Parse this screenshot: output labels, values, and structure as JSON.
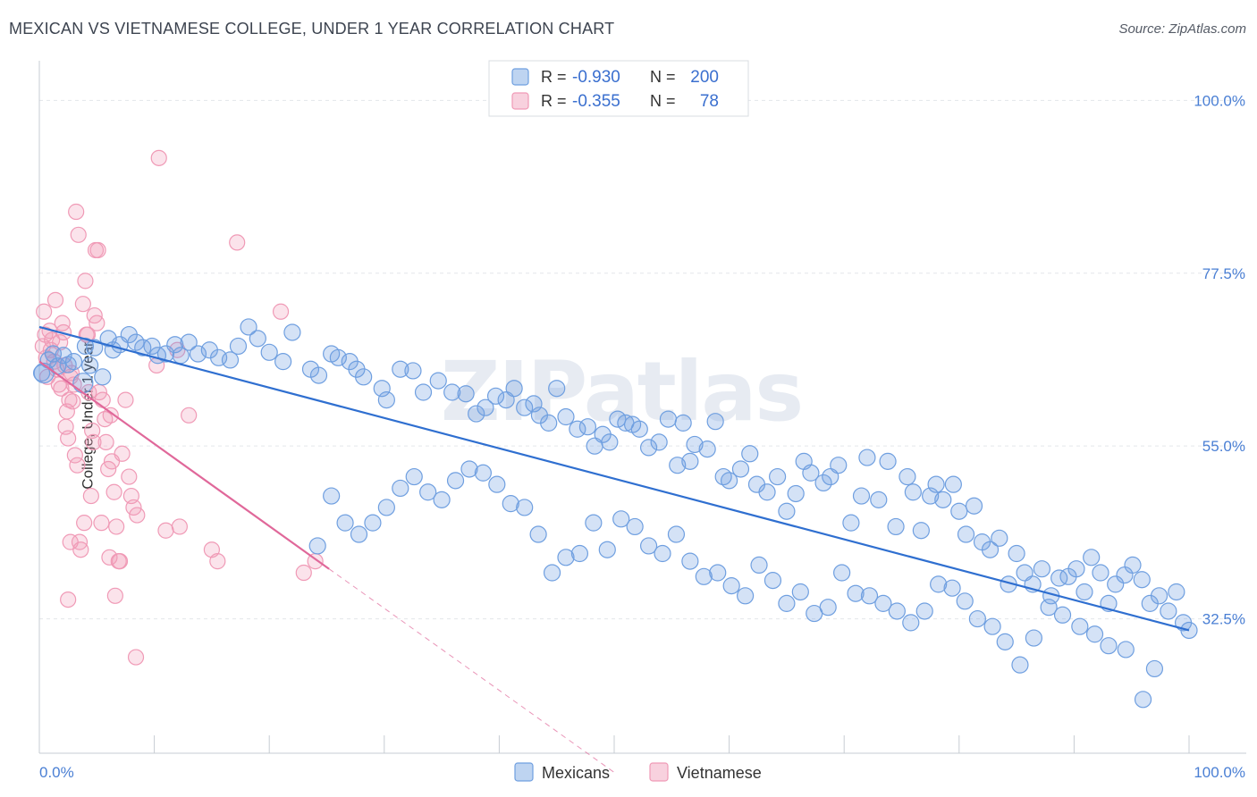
{
  "title": "MEXICAN VS VIETNAMESE COLLEGE, UNDER 1 YEAR CORRELATION CHART",
  "source": "Source: ZipAtlas.com",
  "watermark": "ZIPatlas",
  "chart_data": {
    "type": "scatter",
    "xlabel": "",
    "ylabel": "College, Under 1 year",
    "xlim": [
      0,
      100
    ],
    "ylim": [
      15,
      104
    ],
    "x_tick_labels": [
      "0.0%",
      "100.0%"
    ],
    "y_ticks": [
      100,
      77.5,
      55,
      32.5
    ],
    "y_tick_labels": [
      "100.0%",
      "77.5%",
      "55.0%",
      "32.5%"
    ],
    "grid": true,
    "legend_position": "top-center",
    "legend": [
      {
        "r_label": "R =",
        "r_value": "-0.930",
        "n_label": "N =",
        "n_value": "200"
      },
      {
        "r_label": "R =",
        "r_value": "-0.355",
        "n_label": "N =",
        "n_value": "78"
      }
    ],
    "series": [
      {
        "name": "Mexicans",
        "color": "#6f9fe0",
        "line_color": "#2f6fd0",
        "trend": {
          "x0": 0,
          "y0": 70.5,
          "x1": 100,
          "y1": 31.0
        },
        "points": [
          [
            0.2,
            64.5
          ],
          [
            0.8,
            66.2
          ],
          [
            1.2,
            67.0
          ],
          [
            1.6,
            65.4
          ],
          [
            2.1,
            66.8
          ],
          [
            2.5,
            65.6
          ],
          [
            3.0,
            66.0
          ],
          [
            4.0,
            68.0
          ],
          [
            4.4,
            65.5
          ],
          [
            4.8,
            67.8
          ],
          [
            5.5,
            64.0
          ],
          [
            6.0,
            69.0
          ],
          [
            6.4,
            67.5
          ],
          [
            7.0,
            68.2
          ],
          [
            7.8,
            69.5
          ],
          [
            8.4,
            68.5
          ],
          [
            9.0,
            67.8
          ],
          [
            9.8,
            68.0
          ],
          [
            10.3,
            66.8
          ],
          [
            11.0,
            67.0
          ],
          [
            11.8,
            68.2
          ],
          [
            12.3,
            66.8
          ],
          [
            13.0,
            68.5
          ],
          [
            13.8,
            67.0
          ],
          [
            14.8,
            67.5
          ],
          [
            15.6,
            66.5
          ],
          [
            16.6,
            66.2
          ],
          [
            17.3,
            68.0
          ],
          [
            18.2,
            70.5
          ],
          [
            19.0,
            69.0
          ],
          [
            20.0,
            67.2
          ],
          [
            21.2,
            66.0
          ],
          [
            22.0,
            69.8
          ],
          [
            23.6,
            65.0
          ],
          [
            24.3,
            64.2
          ],
          [
            25.4,
            67.0
          ],
          [
            26.0,
            66.5
          ],
          [
            27.0,
            66.0
          ],
          [
            27.6,
            65.0
          ],
          [
            28.2,
            64.0
          ],
          [
            29.8,
            62.5
          ],
          [
            30.2,
            61.0
          ],
          [
            31.4,
            65.0
          ],
          [
            32.5,
            64.8
          ],
          [
            33.4,
            62.0
          ],
          [
            34.7,
            63.5
          ],
          [
            35.9,
            62.0
          ],
          [
            37.1,
            61.8
          ],
          [
            38.0,
            59.2
          ],
          [
            38.8,
            60.0
          ],
          [
            39.7,
            61.5
          ],
          [
            40.6,
            61.0
          ],
          [
            41.3,
            62.5
          ],
          [
            42.2,
            60.0
          ],
          [
            43.0,
            60.5
          ],
          [
            43.5,
            59.0
          ],
          [
            44.3,
            58.0
          ],
          [
            45.0,
            62.5
          ],
          [
            45.8,
            58.8
          ],
          [
            46.8,
            57.2
          ],
          [
            47.7,
            57.5
          ],
          [
            48.3,
            55.0
          ],
          [
            49.0,
            56.5
          ],
          [
            49.6,
            55.5
          ],
          [
            50.3,
            58.5
          ],
          [
            51.0,
            58.0
          ],
          [
            51.6,
            57.8
          ],
          [
            52.2,
            57.2
          ],
          [
            53.0,
            54.8
          ],
          [
            53.9,
            55.5
          ],
          [
            54.7,
            58.5
          ],
          [
            55.5,
            52.5
          ],
          [
            56.0,
            58.0
          ],
          [
            56.6,
            53.0
          ],
          [
            57.0,
            55.2
          ],
          [
            58.1,
            54.6
          ],
          [
            58.8,
            58.2
          ],
          [
            59.5,
            51.0
          ],
          [
            60.0,
            50.5
          ],
          [
            61.0,
            52.0
          ],
          [
            61.8,
            54.0
          ],
          [
            62.4,
            50.0
          ],
          [
            63.3,
            49.0
          ],
          [
            64.2,
            51.0
          ],
          [
            65.0,
            46.5
          ],
          [
            65.8,
            48.8
          ],
          [
            66.5,
            53.0
          ],
          [
            67.1,
            51.5
          ],
          [
            68.2,
            50.2
          ],
          [
            68.8,
            51.0
          ],
          [
            69.5,
            52.5
          ],
          [
            70.6,
            45.0
          ],
          [
            71.5,
            48.5
          ],
          [
            72.0,
            53.5
          ],
          [
            73.0,
            48.0
          ],
          [
            73.8,
            53.0
          ],
          [
            74.5,
            44.5
          ],
          [
            75.5,
            51.0
          ],
          [
            76.0,
            49.0
          ],
          [
            76.7,
            44.0
          ],
          [
            77.5,
            48.5
          ],
          [
            78.0,
            50.0
          ],
          [
            78.6,
            48.0
          ],
          [
            79.5,
            50.0
          ],
          [
            80.0,
            46.5
          ],
          [
            80.6,
            43.5
          ],
          [
            81.3,
            47.2
          ],
          [
            82.0,
            42.5
          ],
          [
            82.7,
            41.5
          ],
          [
            83.5,
            43.0
          ],
          [
            84.3,
            37.0
          ],
          [
            85.0,
            41.0
          ],
          [
            85.7,
            38.5
          ],
          [
            86.4,
            37.0
          ],
          [
            87.2,
            39.0
          ],
          [
            88.0,
            35.5
          ],
          [
            88.7,
            37.8
          ],
          [
            89.5,
            38.0
          ],
          [
            90.2,
            39.0
          ],
          [
            90.9,
            36.0
          ],
          [
            91.5,
            40.5
          ],
          [
            92.3,
            38.5
          ],
          [
            93.0,
            34.5
          ],
          [
            93.6,
            37.0
          ],
          [
            94.4,
            38.2
          ],
          [
            95.1,
            39.5
          ],
          [
            95.9,
            37.6
          ],
          [
            96.6,
            34.5
          ],
          [
            97.4,
            35.5
          ],
          [
            98.2,
            33.5
          ],
          [
            98.9,
            36.0
          ],
          [
            99.5,
            32.0
          ],
          [
            100.0,
            31.0
          ],
          [
            97.0,
            26.0
          ],
          [
            96.0,
            22.0
          ],
          [
            94.5,
            28.5
          ],
          [
            93.0,
            29.0
          ],
          [
            91.8,
            30.5
          ],
          [
            90.5,
            31.5
          ],
          [
            89.0,
            33.0
          ],
          [
            87.8,
            34.0
          ],
          [
            86.5,
            30.0
          ],
          [
            85.3,
            26.5
          ],
          [
            84.0,
            29.5
          ],
          [
            82.9,
            31.5
          ],
          [
            81.6,
            32.5
          ],
          [
            80.5,
            34.8
          ],
          [
            79.4,
            36.5
          ],
          [
            78.2,
            37.0
          ],
          [
            77.0,
            33.5
          ],
          [
            75.8,
            32.0
          ],
          [
            74.6,
            33.5
          ],
          [
            73.4,
            34.5
          ],
          [
            72.2,
            35.5
          ],
          [
            71.0,
            35.8
          ],
          [
            69.8,
            38.5
          ],
          [
            68.6,
            34.0
          ],
          [
            67.4,
            33.2
          ],
          [
            66.2,
            36.0
          ],
          [
            65.0,
            34.5
          ],
          [
            63.8,
            37.5
          ],
          [
            62.6,
            39.5
          ],
          [
            61.4,
            35.5
          ],
          [
            60.2,
            36.8
          ],
          [
            59.0,
            38.5
          ],
          [
            57.8,
            38.0
          ],
          [
            56.6,
            40.0
          ],
          [
            55.4,
            43.5
          ],
          [
            54.2,
            41.0
          ],
          [
            53.0,
            42.0
          ],
          [
            51.8,
            44.5
          ],
          [
            50.6,
            45.5
          ],
          [
            49.4,
            41.5
          ],
          [
            48.2,
            45.0
          ],
          [
            47.0,
            41.0
          ],
          [
            45.8,
            40.5
          ],
          [
            44.6,
            38.5
          ],
          [
            43.4,
            43.5
          ],
          [
            42.2,
            47.0
          ],
          [
            41.0,
            47.5
          ],
          [
            39.8,
            50.0
          ],
          [
            38.6,
            51.5
          ],
          [
            37.4,
            52.0
          ],
          [
            36.2,
            50.5
          ],
          [
            35.0,
            48.0
          ],
          [
            33.8,
            49.0
          ],
          [
            32.6,
            51.0
          ],
          [
            31.4,
            49.5
          ],
          [
            30.2,
            47.0
          ],
          [
            29.0,
            45.0
          ],
          [
            27.8,
            43.5
          ],
          [
            26.6,
            45.0
          ],
          [
            25.4,
            48.5
          ],
          [
            24.2,
            42.0
          ]
        ]
      },
      {
        "name": "Vietnamese",
        "color": "#f09ab6",
        "line_color": "#e0689a",
        "trend": {
          "x0": 0,
          "y0": 66.0,
          "x1": 25.2,
          "y1": 39.0
        },
        "trend_dashed": {
          "x0": 25.2,
          "y0": 39.0,
          "x1": 50.0,
          "y1": 12.5
        },
        "points": [
          [
            0.3,
            68.0
          ],
          [
            0.4,
            72.5
          ],
          [
            0.5,
            69.5
          ],
          [
            0.6,
            66.5
          ],
          [
            0.7,
            64.0
          ],
          [
            0.9,
            70.0
          ],
          [
            1.0,
            67.5
          ],
          [
            1.1,
            68.8
          ],
          [
            1.3,
            66.0
          ],
          [
            1.4,
            74.0
          ],
          [
            1.5,
            65.0
          ],
          [
            1.7,
            63.0
          ],
          [
            1.8,
            68.5
          ],
          [
            1.9,
            62.5
          ],
          [
            2.0,
            71.0
          ],
          [
            2.1,
            69.8
          ],
          [
            2.2,
            65.5
          ],
          [
            2.3,
            57.5
          ],
          [
            2.4,
            59.5
          ],
          [
            2.5,
            56.0
          ],
          [
            2.7,
            64.0
          ],
          [
            2.9,
            60.8
          ],
          [
            3.1,
            53.8
          ],
          [
            3.3,
            52.5
          ],
          [
            3.5,
            42.5
          ],
          [
            3.6,
            41.5
          ],
          [
            3.8,
            73.5
          ],
          [
            3.9,
            45.0
          ],
          [
            4.0,
            76.5
          ],
          [
            4.1,
            69.5
          ],
          [
            4.2,
            69.5
          ],
          [
            4.5,
            48.5
          ],
          [
            4.7,
            55.5
          ],
          [
            4.8,
            72.0
          ],
          [
            5.0,
            71.0
          ],
          [
            5.2,
            62.0
          ],
          [
            5.5,
            61.0
          ],
          [
            5.7,
            58.5
          ],
          [
            5.8,
            55.5
          ],
          [
            6.0,
            52.0
          ],
          [
            6.2,
            59.0
          ],
          [
            6.3,
            53.0
          ],
          [
            6.5,
            49.0
          ],
          [
            6.7,
            44.5
          ],
          [
            7.0,
            40.0
          ],
          [
            7.2,
            54.0
          ],
          [
            7.5,
            61.0
          ],
          [
            7.8,
            51.0
          ],
          [
            8.0,
            48.5
          ],
          [
            8.2,
            47.0
          ],
          [
            8.5,
            46.0
          ],
          [
            2.6,
            61.0
          ],
          [
            2.8,
            64.5
          ],
          [
            3.0,
            63.0
          ],
          [
            4.3,
            62.0
          ],
          [
            4.6,
            57.0
          ],
          [
            5.4,
            45.0
          ],
          [
            6.1,
            40.5
          ],
          [
            6.6,
            35.5
          ],
          [
            6.9,
            40.0
          ],
          [
            5.1,
            80.5
          ],
          [
            4.9,
            80.5
          ],
          [
            2.7,
            42.5
          ],
          [
            2.5,
            35.0
          ],
          [
            3.2,
            85.5
          ],
          [
            3.4,
            82.5
          ],
          [
            8.4,
            27.5
          ],
          [
            10.4,
            92.5
          ],
          [
            12.0,
            67.5
          ],
          [
            10.2,
            65.5
          ],
          [
            11.0,
            44.0
          ],
          [
            12.2,
            44.5
          ],
          [
            13.0,
            59.0
          ],
          [
            15.0,
            41.5
          ],
          [
            15.5,
            40.0
          ],
          [
            17.2,
            81.5
          ],
          [
            24.0,
            40.0
          ],
          [
            23.0,
            38.5
          ],
          [
            21.0,
            72.5
          ]
        ]
      }
    ],
    "legend_bottom": [
      "Mexicans",
      "Vietnamese"
    ]
  }
}
